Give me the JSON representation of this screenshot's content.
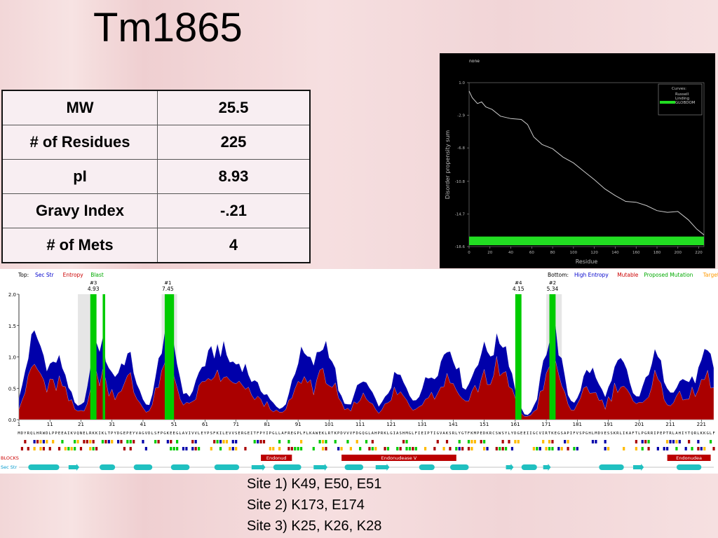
{
  "title": "Tm1865",
  "properties": [
    {
      "label": "MW",
      "value": "25.5"
    },
    {
      "label": "# of Residues",
      "value": "225"
    },
    {
      "label": "pI",
      "value": "8.93"
    },
    {
      "label": "Gravy Index",
      "value": "-.21"
    },
    {
      "label": "# of Mets",
      "value": "4"
    }
  ],
  "disorder_plot": {
    "heading": "none",
    "ylabel": "Disorder propensity sum",
    "xlabel": "Residue",
    "legend_title": "Curves:",
    "legend_items": [
      "Russell",
      "Linding",
      "GLOBDOM"
    ],
    "colors": {
      "curve": "#cccccc",
      "globdom": "#22dd22",
      "bg": "#000000"
    },
    "chart_data": {
      "type": "line",
      "xlim": [
        0,
        225
      ],
      "ylim": [
        -18.6,
        1.0
      ],
      "x_ticks": [
        0,
        20,
        40,
        60,
        80,
        100,
        120,
        140,
        160,
        180,
        200,
        220
      ],
      "y_ticks": [
        "1.0",
        "-2.9",
        "-6.8",
        "-10.8",
        "-14.7",
        "-18.6"
      ],
      "series": [
        {
          "name": "Russell",
          "x": [
            0,
            3,
            8,
            12,
            16,
            22,
            30,
            40,
            50,
            56,
            62,
            70,
            80,
            90,
            100,
            110,
            120,
            130,
            140,
            150,
            160,
            170,
            180,
            190,
            200,
            210,
            218,
            225
          ],
          "values": [
            0.0,
            -0.8,
            -1.5,
            -1.3,
            -1.9,
            -2.2,
            -3.0,
            -3.3,
            -3.4,
            -4.0,
            -5.5,
            -6.4,
            -6.9,
            -7.9,
            -8.6,
            -9.6,
            -10.6,
            -11.7,
            -12.5,
            -13.2,
            -13.3,
            -13.7,
            -14.3,
            -14.5,
            -14.4,
            -15.4,
            -16.5,
            -17.2
          ]
        }
      ],
      "bands": [
        {
          "name": "GLOBDOM",
          "x": [
            0,
            225
          ]
        }
      ]
    }
  },
  "sequence_panel": {
    "top_label": "Top:",
    "top_items": [
      {
        "text": "Sec Str",
        "color": "#0000cc"
      },
      {
        "text": "Entropy",
        "color": "#cc0000"
      },
      {
        "text": "Blast",
        "color": "#00aa00"
      }
    ],
    "bottom_label": "Bottom:",
    "bottom_items": [
      {
        "text": "High Entropy",
        "color": "#0000cc"
      },
      {
        "text": "Mutable",
        "color": "#cc0000"
      },
      {
        "text": "Proposed Mutation",
        "color": "#00aa00"
      },
      {
        "text": "Target",
        "color": "#ff9900"
      }
    ],
    "sites": [
      {
        "rank": "#3",
        "score": "4.93",
        "pos": 25
      },
      {
        "rank": "#1",
        "score": "7.45",
        "pos": 49
      },
      {
        "rank": "#4",
        "score": "4.15",
        "pos": 162
      },
      {
        "rank": "#2",
        "score": "5.34",
        "pos": 173
      }
    ],
    "y_ticks": [
      "2.0",
      "1.5",
      "1.0",
      "0.5",
      "0.0"
    ],
    "x_ticks": [
      "1",
      "11",
      "21",
      "31",
      "41",
      "51",
      "61",
      "71",
      "81",
      "91",
      "101",
      "111",
      "121",
      "131",
      "141",
      "151",
      "161",
      "171",
      "181",
      "191",
      "201",
      "211",
      "221"
    ],
    "sequence": "MDYRQLHRWDLPPEEAIKVQNELRKKIKLTPYDGEPEYVAGVDLSFPGKEEGLAVIVVLEYPSFKILEVVSERGEITFPYIPGLLAFREGPLFLKAWEKLRTKPDVVVFDGQGLAHPRKLGIASHMGLFIEIPTIGVAKSRLYGTFKMPEDKRCSWSYLYDGEEIIGCVIRTKEGSAPIFVSPGHLMDVESSKRLIKAFTLPGRRIPEPTRLAHIYTQRLKKGLF",
    "track_labels": [
      "BLOCKS",
      "Sec Str"
    ],
    "blocks": [
      {
        "label": "Endonud",
        "start": 79,
        "end": 89
      },
      {
        "label": "Endonudease V",
        "start": 105,
        "end": 142
      },
      {
        "label": "Endonudea",
        "start": 210,
        "end": 224
      }
    ],
    "colors": {
      "entropy": "#0000aa",
      "mutable": "#aa0000",
      "blast": "#00cc00",
      "target": "#ffbb00",
      "highlight": "#e6e6e6",
      "helix": "#20c0c0"
    }
  },
  "site_list": [
    "Site 1) K49, E50, E51",
    "Site 2) K173, E174",
    "Site 3) K25, K26, K28"
  ]
}
